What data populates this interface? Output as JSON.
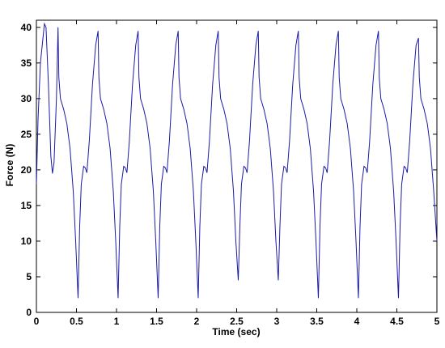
{
  "chart_data": {
    "type": "line",
    "xlabel": "Time (sec)",
    "ylabel": "Force (N)",
    "xlim": [
      0,
      5
    ],
    "ylim": [
      0,
      41
    ],
    "xticks": [
      0,
      0.5,
      1,
      1.5,
      2,
      2.5,
      3,
      3.5,
      4,
      4.5,
      5
    ],
    "yticks": [
      0,
      5,
      10,
      15,
      20,
      25,
      30,
      35,
      40
    ],
    "grid": false,
    "series": [
      {
        "color": "#1a1aa6",
        "x": [
          0,
          0.02,
          0.05,
          0.1,
          0.12,
          0.15,
          0.18,
          0.2,
          0.22,
          0.25,
          0.27,
          0.28,
          0.3,
          0.34,
          0.38,
          0.42,
          0.46,
          0.49,
          0.52,
          0.54,
          0.56,
          0.59,
          0.61,
          0.63,
          0.66,
          0.7,
          0.74,
          0.77,
          0.78,
          0.8,
          0.84,
          0.88,
          0.92,
          0.96,
          0.99,
          1.02,
          1.04,
          1.06,
          1.09,
          1.11,
          1.13,
          1.16,
          1.2,
          1.24,
          1.27,
          1.28,
          1.3,
          1.34,
          1.38,
          1.42,
          1.46,
          1.49,
          1.52,
          1.54,
          1.56,
          1.59,
          1.61,
          1.63,
          1.66,
          1.7,
          1.74,
          1.77,
          1.78,
          1.8,
          1.84,
          1.88,
          1.92,
          1.96,
          1.99,
          2.02,
          2.04,
          2.06,
          2.09,
          2.11,
          2.13,
          2.16,
          2.2,
          2.24,
          2.27,
          2.28,
          2.3,
          2.34,
          2.38,
          2.42,
          2.46,
          2.49,
          2.52,
          2.54,
          2.56,
          2.59,
          2.61,
          2.63,
          2.66,
          2.7,
          2.74,
          2.77,
          2.78,
          2.8,
          2.84,
          2.88,
          2.92,
          2.96,
          2.99,
          3.02,
          3.04,
          3.06,
          3.09,
          3.11,
          3.13,
          3.16,
          3.2,
          3.24,
          3.27,
          3.28,
          3.3,
          3.34,
          3.38,
          3.42,
          3.46,
          3.49,
          3.52,
          3.54,
          3.56,
          3.59,
          3.61,
          3.63,
          3.66,
          3.7,
          3.74,
          3.77,
          3.78,
          3.8,
          3.84,
          3.88,
          3.92,
          3.96,
          3.99,
          4.02,
          4.04,
          4.06,
          4.09,
          4.11,
          4.13,
          4.16,
          4.2,
          4.24,
          4.27,
          4.28,
          4.3,
          4.34,
          4.38,
          4.42,
          4.46,
          4.49,
          4.52,
          4.54,
          4.56,
          4.59,
          4.61,
          4.63,
          4.66,
          4.7,
          4.74,
          4.77,
          4.78,
          4.8,
          4.84,
          4.88,
          4.92,
          4.96,
          5
        ],
        "values": [
          18,
          27,
          35,
          40.5,
          40,
          32,
          22,
          19.5,
          21,
          30,
          40,
          33,
          30,
          28.5,
          26.5,
          23,
          17,
          10,
          2,
          12,
          18,
          20.5,
          20.3,
          19.6,
          24,
          32,
          37.5,
          39.5,
          33,
          30,
          28.5,
          26.5,
          23,
          17,
          10,
          2,
          12,
          18,
          20.5,
          20.3,
          19.6,
          24,
          32,
          37.5,
          39.5,
          33,
          30,
          28.5,
          26.5,
          23,
          17,
          10,
          2,
          12,
          18,
          20.5,
          20.3,
          19.6,
          24,
          32,
          37.5,
          39.5,
          33,
          30,
          28.5,
          26.5,
          23,
          17,
          10,
          2,
          12,
          18,
          20.5,
          20.3,
          19.6,
          24,
          32,
          37.5,
          39.5,
          33,
          30,
          28.5,
          26.5,
          23,
          17,
          10,
          4.5,
          12,
          18,
          20.5,
          20.3,
          19.6,
          24,
          32,
          37.5,
          39.5,
          33,
          30,
          28.5,
          26.5,
          23,
          17,
          10,
          4.5,
          12,
          18,
          20.5,
          20.3,
          19.6,
          24,
          32,
          37.5,
          39.5,
          33,
          30,
          28.5,
          26.5,
          23,
          17,
          10,
          2,
          12,
          18,
          20.5,
          20.3,
          19.6,
          24,
          32,
          37.5,
          39.5,
          33,
          30,
          28.5,
          26.5,
          23,
          17,
          10,
          2,
          12,
          18,
          20.5,
          20.3,
          19.6,
          24,
          32,
          37.5,
          39.5,
          33,
          30,
          28.5,
          26.5,
          23,
          17,
          10,
          2,
          12,
          18,
          20.5,
          20.3,
          19.6,
          24,
          32,
          37.5,
          38.5,
          33,
          30,
          28.5,
          26.5,
          23,
          17,
          10
        ]
      }
    ]
  }
}
